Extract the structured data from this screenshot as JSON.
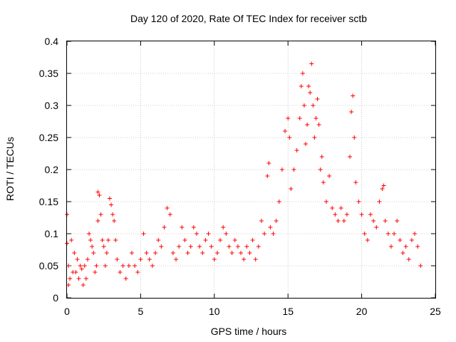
{
  "chart_data": {
    "type": "scatter",
    "title": "Day 120 of 2020, Rate Of TEC Index for receiver sctb",
    "xlabel": "GPS time / hours",
    "ylabel": "ROTI / TECUs",
    "xlim": [
      0,
      25
    ],
    "ylim": [
      0,
      0.4
    ],
    "xticks": [
      0,
      5,
      10,
      15,
      20,
      25
    ],
    "yticks": [
      0,
      0.05,
      0.1,
      0.15,
      0.2,
      0.25,
      0.3,
      0.35,
      0.4
    ],
    "xtick_labels": [
      "0",
      "5",
      "10",
      "15",
      "20",
      "25"
    ],
    "ytick_labels": [
      "0",
      "0.05",
      "0.1",
      "0.15",
      "0.2",
      "0.25",
      "0.3",
      "0.35",
      "0.4"
    ],
    "grid": true,
    "legend": "none",
    "marker": "plus",
    "color": "#ff0000",
    "series": [
      {
        "points": [
          [
            0.0,
            0.13
          ],
          [
            0.0,
            0.085
          ],
          [
            0.1,
            0.05
          ],
          [
            0.1,
            0.02
          ],
          [
            0.2,
            0.03
          ],
          [
            0.3,
            0.09
          ],
          [
            0.4,
            0.04
          ],
          [
            0.5,
            0.07
          ],
          [
            0.6,
            0.04
          ],
          [
            0.7,
            0.06
          ],
          [
            0.8,
            0.03
          ],
          [
            0.9,
            0.05
          ],
          [
            1.0,
            0.045
          ],
          [
            1.1,
            0.02
          ],
          [
            1.2,
            0.05
          ],
          [
            1.3,
            0.03
          ],
          [
            1.4,
            0.06
          ],
          [
            1.5,
            0.1
          ],
          [
            1.6,
            0.09
          ],
          [
            1.7,
            0.08
          ],
          [
            1.8,
            0.07
          ],
          [
            1.9,
            0.04
          ],
          [
            2.0,
            0.05
          ],
          [
            2.1,
            0.12
          ],
          [
            2.1,
            0.165
          ],
          [
            2.2,
            0.16
          ],
          [
            2.3,
            0.13
          ],
          [
            2.4,
            0.09
          ],
          [
            2.5,
            0.08
          ],
          [
            2.6,
            0.05
          ],
          [
            2.7,
            0.07
          ],
          [
            2.8,
            0.09
          ],
          [
            2.9,
            0.155
          ],
          [
            3.0,
            0.145
          ],
          [
            3.1,
            0.13
          ],
          [
            3.2,
            0.12
          ],
          [
            3.3,
            0.09
          ],
          [
            3.4,
            0.06
          ],
          [
            3.6,
            0.04
          ],
          [
            3.8,
            0.05
          ],
          [
            4.0,
            0.03
          ],
          [
            4.2,
            0.05
          ],
          [
            4.4,
            0.07
          ],
          [
            4.6,
            0.05
          ],
          [
            4.8,
            0.04
          ],
          [
            5.0,
            0.06
          ],
          [
            5.2,
            0.1
          ],
          [
            5.4,
            0.07
          ],
          [
            5.6,
            0.06
          ],
          [
            5.8,
            0.05
          ],
          [
            6.0,
            0.07
          ],
          [
            6.2,
            0.09
          ],
          [
            6.4,
            0.08
          ],
          [
            6.6,
            0.11
          ],
          [
            6.8,
            0.14
          ],
          [
            7.0,
            0.13
          ],
          [
            7.2,
            0.07
          ],
          [
            7.4,
            0.06
          ],
          [
            7.6,
            0.08
          ],
          [
            7.8,
            0.11
          ],
          [
            8.0,
            0.09
          ],
          [
            8.2,
            0.07
          ],
          [
            8.4,
            0.08
          ],
          [
            8.6,
            0.11
          ],
          [
            8.8,
            0.1
          ],
          [
            9.0,
            0.08
          ],
          [
            9.2,
            0.07
          ],
          [
            9.4,
            0.09
          ],
          [
            9.6,
            0.1
          ],
          [
            9.8,
            0.08
          ],
          [
            10.0,
            0.06
          ],
          [
            10.2,
            0.07
          ],
          [
            10.4,
            0.09
          ],
          [
            10.6,
            0.11
          ],
          [
            10.8,
            0.1
          ],
          [
            11.0,
            0.08
          ],
          [
            11.2,
            0.07
          ],
          [
            11.4,
            0.09
          ],
          [
            11.6,
            0.08
          ],
          [
            11.8,
            0.07
          ],
          [
            12.0,
            0.06
          ],
          [
            12.2,
            0.08
          ],
          [
            12.4,
            0.07
          ],
          [
            12.6,
            0.09
          ],
          [
            12.8,
            0.06
          ],
          [
            13.0,
            0.08
          ],
          [
            13.2,
            0.12
          ],
          [
            13.4,
            0.1
          ],
          [
            13.6,
            0.19
          ],
          [
            13.7,
            0.21
          ],
          [
            13.8,
            0.11
          ],
          [
            14.0,
            0.1
          ],
          [
            14.2,
            0.12
          ],
          [
            14.4,
            0.15
          ],
          [
            14.6,
            0.2
          ],
          [
            14.8,
            0.26
          ],
          [
            15.0,
            0.28
          ],
          [
            15.1,
            0.25
          ],
          [
            15.2,
            0.17
          ],
          [
            15.4,
            0.2
          ],
          [
            15.6,
            0.23
          ],
          [
            15.8,
            0.28
          ],
          [
            15.9,
            0.33
          ],
          [
            16.0,
            0.35
          ],
          [
            16.1,
            0.3
          ],
          [
            16.2,
            0.24
          ],
          [
            16.3,
            0.27
          ],
          [
            16.4,
            0.33
          ],
          [
            16.5,
            0.32
          ],
          [
            16.6,
            0.365
          ],
          [
            16.7,
            0.3
          ],
          [
            16.8,
            0.25
          ],
          [
            16.9,
            0.28
          ],
          [
            17.0,
            0.31
          ],
          [
            17.1,
            0.27
          ],
          [
            17.2,
            0.2
          ],
          [
            17.3,
            0.22
          ],
          [
            17.4,
            0.18
          ],
          [
            17.6,
            0.15
          ],
          [
            17.8,
            0.19
          ],
          [
            18.0,
            0.14
          ],
          [
            18.2,
            0.13
          ],
          [
            18.4,
            0.12
          ],
          [
            18.6,
            0.14
          ],
          [
            18.8,
            0.12
          ],
          [
            19.0,
            0.13
          ],
          [
            19.2,
            0.22
          ],
          [
            19.3,
            0.29
          ],
          [
            19.4,
            0.315
          ],
          [
            19.5,
            0.25
          ],
          [
            19.6,
            0.18
          ],
          [
            19.8,
            0.15
          ],
          [
            20.0,
            0.13
          ],
          [
            20.2,
            0.1
          ],
          [
            20.4,
            0.09
          ],
          [
            20.6,
            0.13
          ],
          [
            20.8,
            0.12
          ],
          [
            21.0,
            0.11
          ],
          [
            21.2,
            0.15
          ],
          [
            21.4,
            0.17
          ],
          [
            21.5,
            0.175
          ],
          [
            21.6,
            0.12
          ],
          [
            21.8,
            0.1
          ],
          [
            22.0,
            0.08
          ],
          [
            22.2,
            0.1
          ],
          [
            22.4,
            0.12
          ],
          [
            22.6,
            0.09
          ],
          [
            22.8,
            0.07
          ],
          [
            23.0,
            0.08
          ],
          [
            23.2,
            0.06
          ],
          [
            23.4,
            0.09
          ],
          [
            23.6,
            0.1
          ],
          [
            23.8,
            0.08
          ],
          [
            24.0,
            0.05
          ]
        ]
      }
    ]
  }
}
